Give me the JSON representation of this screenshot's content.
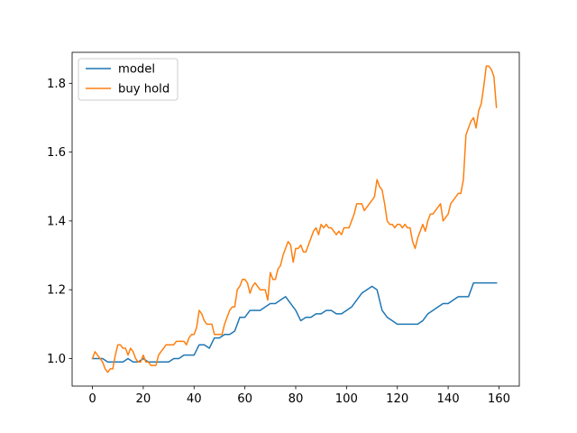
{
  "chart_data": {
    "type": "line",
    "title": "",
    "xlabel": "",
    "ylabel": "",
    "xlim": [
      -8,
      168
    ],
    "ylim": [
      0.92,
      1.89
    ],
    "xticks": [
      0,
      20,
      40,
      60,
      80,
      100,
      120,
      140,
      160
    ],
    "xtick_labels": [
      "0",
      "20",
      "40",
      "60",
      "80",
      "100",
      "120",
      "140",
      "160"
    ],
    "yticks": [
      1.0,
      1.2,
      1.4,
      1.6,
      1.8
    ],
    "ytick_labels": [
      "1.0",
      "1.2",
      "1.4",
      "1.6",
      "1.8"
    ],
    "grid": false,
    "legend_position": "upper-left",
    "series": [
      {
        "name": "model",
        "color": "#1f77b4",
        "x": [
          0,
          2,
          4,
          6,
          8,
          10,
          12,
          14,
          16,
          18,
          20,
          22,
          24,
          26,
          28,
          30,
          32,
          34,
          36,
          38,
          40,
          42,
          44,
          46,
          48,
          50,
          52,
          54,
          56,
          58,
          60,
          62,
          64,
          66,
          68,
          70,
          72,
          74,
          76,
          78,
          80,
          82,
          84,
          86,
          88,
          90,
          92,
          94,
          96,
          98,
          100,
          102,
          104,
          106,
          108,
          110,
          112,
          114,
          116,
          118,
          120,
          122,
          124,
          126,
          128,
          130,
          132,
          134,
          136,
          138,
          140,
          142,
          144,
          146,
          148,
          150,
          152,
          154,
          156,
          158,
          159
        ],
        "values": [
          1.0,
          1.0,
          1.0,
          0.99,
          0.99,
          0.99,
          0.99,
          1.0,
          0.99,
          0.99,
          1.0,
          0.99,
          0.99,
          0.99,
          0.99,
          0.99,
          1.0,
          1.0,
          1.01,
          1.01,
          1.01,
          1.04,
          1.04,
          1.03,
          1.06,
          1.06,
          1.07,
          1.07,
          1.08,
          1.12,
          1.12,
          1.14,
          1.14,
          1.14,
          1.15,
          1.16,
          1.16,
          1.17,
          1.18,
          1.16,
          1.14,
          1.11,
          1.12,
          1.12,
          1.13,
          1.13,
          1.14,
          1.14,
          1.13,
          1.13,
          1.14,
          1.15,
          1.17,
          1.19,
          1.2,
          1.21,
          1.2,
          1.14,
          1.12,
          1.11,
          1.1,
          1.1,
          1.1,
          1.1,
          1.1,
          1.11,
          1.13,
          1.14,
          1.15,
          1.16,
          1.16,
          1.17,
          1.18,
          1.18,
          1.18,
          1.22,
          1.22,
          1.22,
          1.22,
          1.22,
          1.22
        ]
      },
      {
        "name": "buy hold",
        "color": "#ff7f0e",
        "x": [
          0,
          1,
          2,
          3,
          4,
          5,
          6,
          7,
          8,
          9,
          10,
          11,
          12,
          13,
          14,
          15,
          16,
          17,
          18,
          19,
          20,
          21,
          22,
          23,
          24,
          25,
          26,
          27,
          28,
          29,
          30,
          31,
          32,
          33,
          34,
          35,
          36,
          37,
          38,
          39,
          40,
          41,
          42,
          43,
          44,
          45,
          46,
          47,
          48,
          49,
          50,
          51,
          52,
          53,
          54,
          55,
          56,
          57,
          58,
          59,
          60,
          61,
          62,
          63,
          64,
          65,
          66,
          67,
          68,
          69,
          70,
          71,
          72,
          73,
          74,
          75,
          76,
          77,
          78,
          79,
          80,
          81,
          82,
          83,
          84,
          85,
          86,
          87,
          88,
          89,
          90,
          91,
          92,
          93,
          94,
          95,
          96,
          97,
          98,
          99,
          100,
          101,
          102,
          103,
          104,
          105,
          106,
          107,
          108,
          109,
          110,
          111,
          112,
          113,
          114,
          115,
          116,
          117,
          118,
          119,
          120,
          121,
          122,
          123,
          124,
          125,
          126,
          127,
          128,
          129,
          130,
          131,
          132,
          133,
          134,
          135,
          136,
          137,
          138,
          139,
          140,
          141,
          142,
          143,
          144,
          145,
          146,
          147,
          148,
          149,
          150,
          151,
          152,
          153,
          154,
          155,
          156,
          157,
          158,
          159
        ],
        "values": [
          1.0,
          1.02,
          1.01,
          1.0,
          0.99,
          0.97,
          0.96,
          0.97,
          0.97,
          1.01,
          1.04,
          1.04,
          1.03,
          1.03,
          1.01,
          1.03,
          1.02,
          1.0,
          0.99,
          0.99,
          1.01,
          0.99,
          0.99,
          0.98,
          0.98,
          0.98,
          1.01,
          1.02,
          1.03,
          1.04,
          1.04,
          1.04,
          1.04,
          1.05,
          1.05,
          1.05,
          1.05,
          1.04,
          1.06,
          1.07,
          1.07,
          1.09,
          1.14,
          1.13,
          1.11,
          1.1,
          1.1,
          1.1,
          1.07,
          1.07,
          1.07,
          1.07,
          1.1,
          1.12,
          1.14,
          1.15,
          1.15,
          1.2,
          1.21,
          1.23,
          1.23,
          1.22,
          1.19,
          1.21,
          1.22,
          1.21,
          1.2,
          1.2,
          1.2,
          1.17,
          1.25,
          1.23,
          1.23,
          1.26,
          1.27,
          1.3,
          1.32,
          1.34,
          1.33,
          1.28,
          1.32,
          1.32,
          1.33,
          1.31,
          1.31,
          1.33,
          1.35,
          1.37,
          1.38,
          1.36,
          1.39,
          1.38,
          1.39,
          1.38,
          1.38,
          1.37,
          1.36,
          1.37,
          1.36,
          1.38,
          1.38,
          1.38,
          1.4,
          1.42,
          1.45,
          1.45,
          1.45,
          1.43,
          1.44,
          1.45,
          1.46,
          1.47,
          1.52,
          1.5,
          1.49,
          1.45,
          1.4,
          1.39,
          1.39,
          1.38,
          1.39,
          1.39,
          1.38,
          1.39,
          1.38,
          1.38,
          1.34,
          1.32,
          1.35,
          1.37,
          1.39,
          1.37,
          1.4,
          1.42,
          1.42,
          1.43,
          1.44,
          1.45,
          1.4,
          1.41,
          1.42,
          1.45,
          1.46,
          1.47,
          1.48,
          1.48,
          1.52,
          1.65,
          1.67,
          1.69,
          1.7,
          1.67,
          1.72,
          1.74,
          1.79,
          1.85,
          1.85,
          1.84,
          1.82,
          1.73
        ]
      }
    ]
  }
}
